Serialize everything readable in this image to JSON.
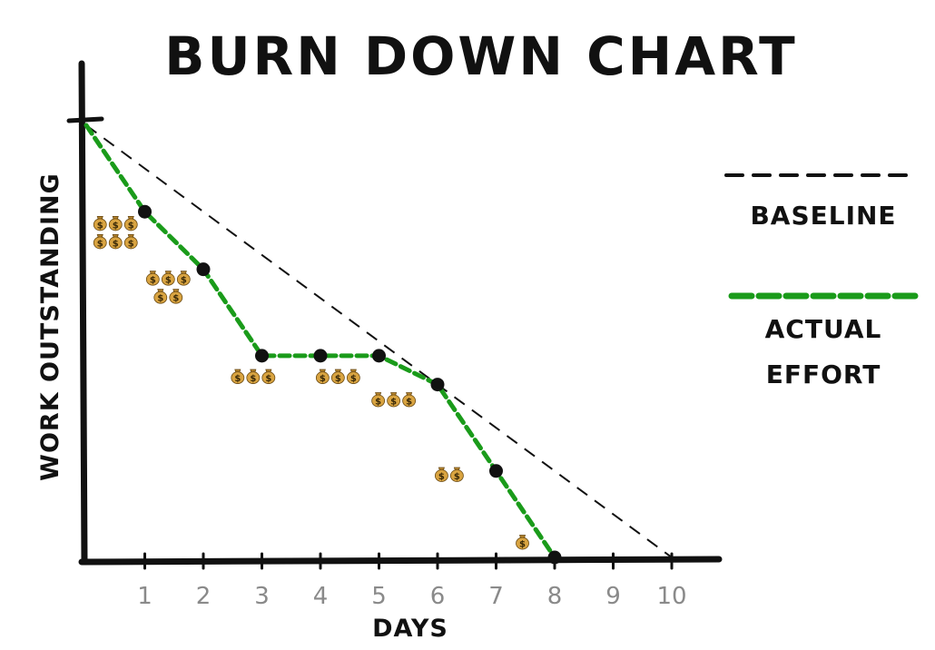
{
  "chart_data": {
    "type": "line",
    "title": "BURN DOWN CHART",
    "xlabel": "DAYS",
    "ylabel": "WORK OUTSTANDING",
    "x_ticks": [
      "1",
      "2",
      "3",
      "4",
      "5",
      "6",
      "7",
      "8",
      "9",
      "10"
    ],
    "xlim": [
      0,
      10
    ],
    "ylim": [
      0,
      15
    ],
    "legend_position": "right",
    "grid": false,
    "legend": [
      {
        "label": "BASELINE",
        "style": "dashed",
        "color": "#111111"
      },
      {
        "label": "ACTUAL\nEFFORT",
        "style": "dashed",
        "color": "#1a9b1a"
      }
    ],
    "series": [
      {
        "name": "BASELINE",
        "color": "#111111",
        "points": [
          [
            0,
            15
          ],
          [
            10,
            0
          ]
        ]
      },
      {
        "name": "ACTUAL\nEFFORT",
        "color": "#1a9b1a",
        "points": [
          [
            0,
            15
          ],
          [
            1,
            12
          ],
          [
            2,
            10
          ],
          [
            3,
            7
          ],
          [
            4,
            7
          ],
          [
            5,
            7
          ],
          [
            6,
            6
          ],
          [
            7,
            3
          ],
          [
            8,
            0
          ]
        ],
        "markers": [
          [
            1,
            12
          ],
          [
            2,
            10
          ],
          [
            3,
            7
          ],
          [
            4,
            7
          ],
          [
            5,
            7
          ],
          [
            6,
            6
          ],
          [
            7,
            3
          ],
          [
            8,
            0
          ]
        ]
      }
    ],
    "annotations": [
      {
        "x": 0.5,
        "y": 11.3,
        "icon": "money-bag",
        "count": 6,
        "rows": [
          3,
          3
        ]
      },
      {
        "x": 1.4,
        "y": 9.4,
        "icon": "money-bag",
        "count": 5,
        "rows": [
          3,
          2
        ]
      },
      {
        "x": 2.85,
        "y": 6.3,
        "icon": "money-bag",
        "count": 3,
        "rows": [
          3
        ]
      },
      {
        "x": 4.3,
        "y": 6.3,
        "icon": "money-bag",
        "count": 3,
        "rows": [
          3
        ]
      },
      {
        "x": 5.25,
        "y": 5.5,
        "icon": "money-bag",
        "count": 3,
        "rows": [
          3
        ]
      },
      {
        "x": 6.2,
        "y": 2.9,
        "icon": "money-bag",
        "count": 2,
        "rows": [
          2
        ]
      },
      {
        "x": 7.45,
        "y": 0.55,
        "icon": "money-bag",
        "count": 1,
        "rows": [
          1
        ]
      }
    ]
  }
}
